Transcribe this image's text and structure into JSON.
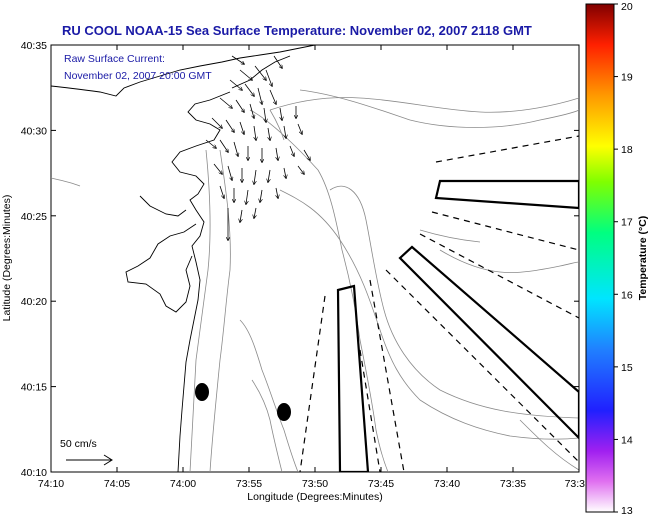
{
  "title": "RU COOL  NOAA-15  Sea Surface Temperature:  November 02, 2007 2118 GMT",
  "annotation": {
    "line1": "Raw Surface Current:",
    "line2": "November 02, 2007 20:00 GMT"
  },
  "axes": {
    "xlabel": "Longitude (Degrees:Minutes)",
    "ylabel": "Latitude (Degrees:Minutes)",
    "x_ticks": [
      "74:10",
      "74:05",
      "74:00",
      "73:55",
      "73:50",
      "73:45",
      "73:40",
      "73:35",
      "73:3"
    ],
    "y_ticks": [
      "40:35",
      "40:30",
      "40:25",
      "40:20",
      "40:15",
      "40:10"
    ]
  },
  "colorbar": {
    "label": "Temperature (°C)",
    "ticks": [
      "20",
      "19",
      "18",
      "17",
      "16",
      "15",
      "14",
      "13"
    ],
    "range": [
      13,
      20
    ]
  },
  "scale_arrow": {
    "label": "50 cm/s"
  }
}
